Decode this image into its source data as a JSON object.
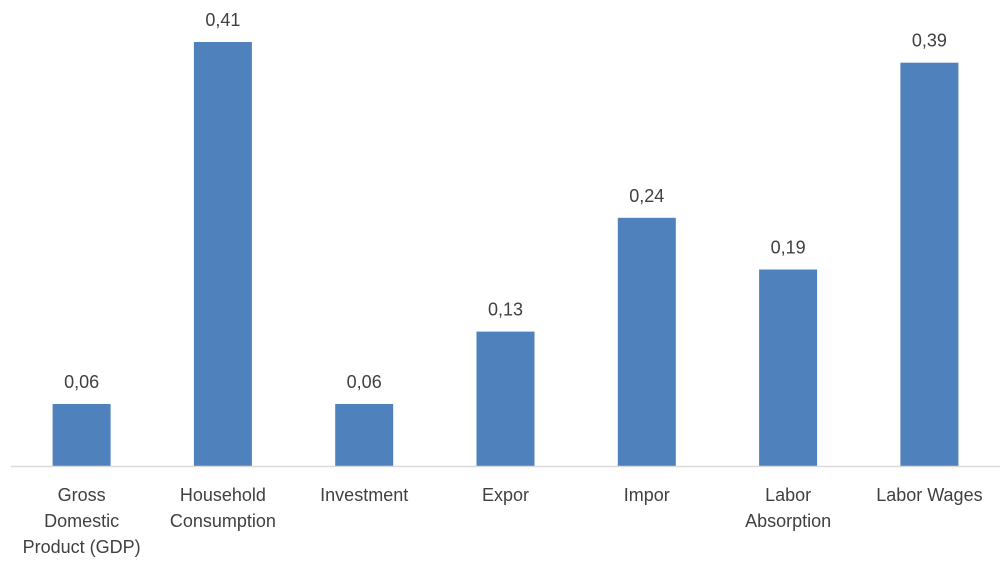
{
  "chart_data": {
    "type": "bar",
    "title": "",
    "xlabel": "",
    "ylabel": "",
    "ylim": [
      0,
      0.41
    ],
    "grid": false,
    "legend": "none",
    "bar_color": "#4f81bd",
    "axis_color": "#d9d9d9",
    "text_color": "#404040",
    "categories": [
      [
        "Gross",
        "Domestic",
        "Product (GDP)"
      ],
      [
        "Household",
        "Consumption"
      ],
      [
        "Investment"
      ],
      [
        "Expor"
      ],
      [
        "Impor"
      ],
      [
        "Labor",
        "Absorption"
      ],
      [
        "Labor Wages"
      ]
    ],
    "values": [
      0.06,
      0.41,
      0.06,
      0.13,
      0.24,
      0.19,
      0.39
    ],
    "value_labels": [
      "0,06",
      "0,41",
      "0,06",
      "0,13",
      "0,24",
      "0,19",
      "0,39"
    ]
  }
}
